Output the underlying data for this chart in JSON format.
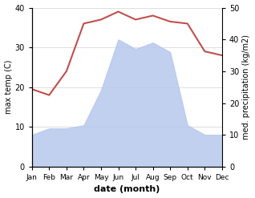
{
  "months": [
    "Jan",
    "Feb",
    "Mar",
    "Apr",
    "May",
    "Jun",
    "Jul",
    "Aug",
    "Sep",
    "Oct",
    "Nov",
    "Dec"
  ],
  "x": [
    1,
    2,
    3,
    4,
    5,
    6,
    7,
    8,
    9,
    10,
    11,
    12
  ],
  "temperature": [
    19.5,
    18.0,
    24.0,
    36.0,
    37.0,
    39.0,
    37.0,
    38.0,
    36.5,
    36.0,
    29.0,
    28.0
  ],
  "precipitation": [
    10,
    12,
    12,
    13,
    24,
    40,
    37,
    39,
    36,
    13,
    10,
    10
  ],
  "temp_color": "#c0504d",
  "precip_fill_color": "#b8c8ee",
  "temp_ylim": [
    0,
    40
  ],
  "precip_ylim": [
    0,
    50
  ],
  "temp_ylabel": "max temp (C)",
  "precip_ylabel": "med. precipitation (kg/m2)",
  "xlabel": "date (month)",
  "temp_yticks": [
    0,
    10,
    20,
    30,
    40
  ],
  "precip_yticks": [
    0,
    10,
    20,
    30,
    40,
    50
  ],
  "bg_color": "#ffffff"
}
